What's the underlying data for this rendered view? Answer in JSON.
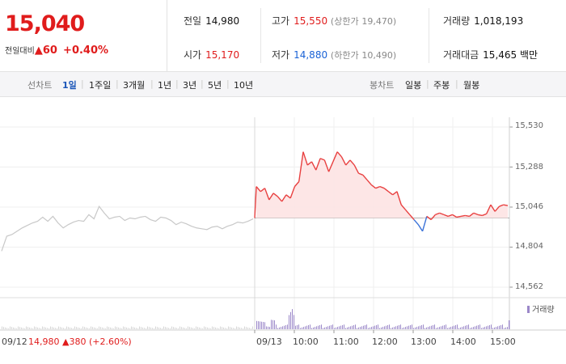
{
  "current": {
    "price": "15,040",
    "label": "전일대비",
    "arrow": "▲",
    "change": "60",
    "percent": "+0.40%"
  },
  "stats": {
    "prev_close": {
      "label": "전일",
      "value": "14,980"
    },
    "open": {
      "label": "시가",
      "value": "15,170"
    },
    "high": {
      "label": "고가",
      "value": "15,550",
      "limit_label": "(상한가",
      "limit_value": "19,470)"
    },
    "low": {
      "label": "저가",
      "value": "14,880",
      "limit_label": "(하한가",
      "limit_value": "10,490)"
    },
    "volume": {
      "label": "거래량",
      "value": "1,018,193"
    },
    "amount": {
      "label": "거래대금",
      "value": "15,465",
      "unit": "백만"
    }
  },
  "toolbar": {
    "line_label": "선차트",
    "line_tabs": [
      "1일",
      "1주일",
      "3개월",
      "1년",
      "3년",
      "5년",
      "10년"
    ],
    "candle_label": "봉차트",
    "candle_tabs": [
      "일봉",
      "주봉",
      "월봉"
    ]
  },
  "chart_data": {
    "type": "line",
    "y_ticks": [
      "15,530",
      "15,288",
      "15,046",
      "14,804",
      "14,562"
    ],
    "x_labels": [
      "09/13",
      "10:00",
      "11:00",
      "12:00",
      "13:00",
      "14:00",
      "15:00"
    ],
    "prev_day_label": "09/12",
    "prev_day_summary": {
      "price": "14,980",
      "arrow": "▲",
      "change": "380",
      "percent": "(+2.60%)"
    },
    "baseline": 14980,
    "ylim": [
      14562,
      15530
    ],
    "volume_legend": "거래량",
    "colors": {
      "up": "#e84040",
      "down": "#3a72d8",
      "prev": "#c8c8c8",
      "fill": "#fde3e3"
    },
    "prev_series": [
      14780,
      14870,
      14880,
      14900,
      14920,
      14935,
      14950,
      14960,
      14985,
      14960,
      14990,
      14950,
      14920,
      14940,
      14955,
      14965,
      14960,
      15000,
      14975,
      15050,
      15010,
      14975,
      14985,
      14990,
      14965,
      14980,
      14975,
      14985,
      14990,
      14970,
      14960,
      14985,
      14980,
      14965,
      14940,
      14955,
      14945,
      14930,
      14920,
      14915,
      14910,
      14925,
      14930,
      14915,
      14930,
      14940,
      14955,
      14950,
      14960,
      14975
    ],
    "today_series": [
      15170,
      15140,
      15160,
      15090,
      15130,
      15110,
      15080,
      15120,
      15100,
      15170,
      15200,
      15380,
      15300,
      15320,
      15270,
      15340,
      15330,
      15260,
      15320,
      15380,
      15350,
      15300,
      15330,
      15300,
      15250,
      15240,
      15210,
      15180,
      15160,
      15170,
      15160,
      15140,
      15120,
      15140,
      15060,
      15030,
      15000,
      14970,
      14940,
      14900,
      14990,
      14970,
      15000,
      15010,
      15000,
      14990,
      15000,
      14985,
      14990,
      14995,
      14990,
      15010,
      15000,
      14995,
      15005,
      15060,
      15020,
      15050,
      15060,
      15055
    ]
  }
}
